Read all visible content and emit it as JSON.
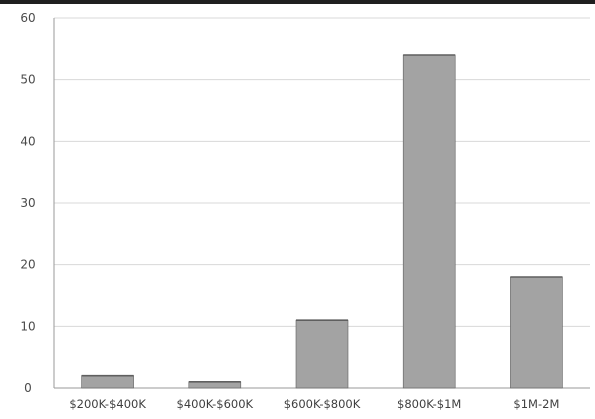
{
  "chart_data": {
    "type": "bar",
    "categories": [
      "$200K-$400K",
      "$400K-$600K",
      "$600K-$800K",
      "$800K-$1M",
      "$1M-2M"
    ],
    "values": [
      2,
      1,
      11,
      54,
      18
    ],
    "ylim": [
      0,
      60
    ],
    "yticks": [
      0,
      10,
      20,
      30,
      40,
      50,
      60
    ],
    "grid": true,
    "legend": "none",
    "colors": {
      "bar_fill": "#a3a3a3",
      "bar_top": "#5f5f5f",
      "grid": "#d8d8d8",
      "axis": "#9a9a9a"
    }
  }
}
